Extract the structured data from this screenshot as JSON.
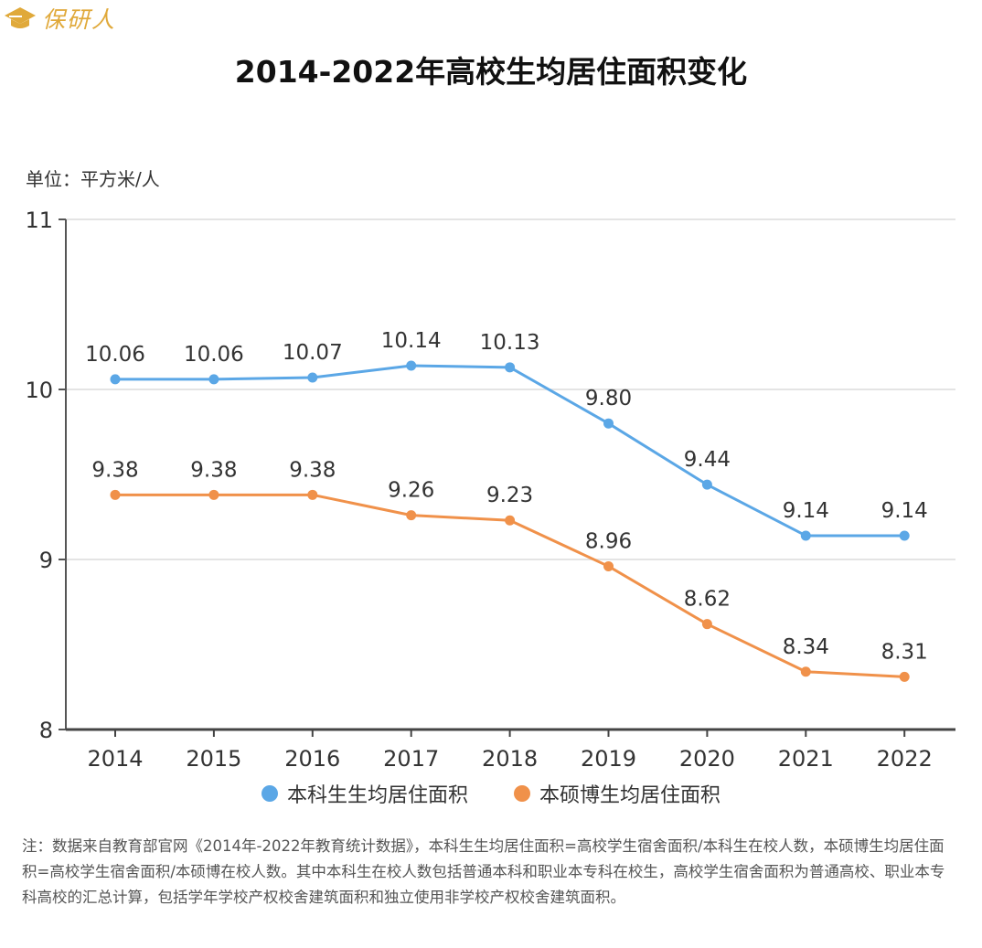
{
  "brand": {
    "name": "保研人",
    "color": "#e0a93a"
  },
  "title": "2014-2022年高校生均居住面积变化",
  "unit_label": "单位：平方米/人",
  "chart_data": {
    "type": "line",
    "title": "2014-2022年高校生均居住面积变化",
    "xlabel": "",
    "ylabel": "单位：平方米/人",
    "categories": [
      "2014",
      "2015",
      "2016",
      "2017",
      "2018",
      "2019",
      "2020",
      "2021",
      "2022"
    ],
    "ylim": [
      8,
      11
    ],
    "yticks": [
      8,
      9,
      10,
      11
    ],
    "ytick_labels": [
      "8",
      "9",
      "10",
      "11"
    ],
    "grid": true,
    "legend_position": "bottom",
    "series": [
      {
        "name": "本科生生均居住面积",
        "color": "#5ba7e6",
        "values": [
          10.06,
          10.06,
          10.07,
          10.14,
          10.13,
          9.8,
          9.44,
          9.14,
          9.14
        ],
        "labels": [
          "10.06",
          "10.06",
          "10.07",
          "10.14",
          "10.13",
          "9.80",
          "9.44",
          "9.14",
          "9.14"
        ]
      },
      {
        "name": "本硕博生均居住面积",
        "color": "#f0914a",
        "values": [
          9.38,
          9.38,
          9.38,
          9.26,
          9.23,
          8.96,
          8.62,
          8.34,
          8.31
        ],
        "labels": [
          "9.38",
          "9.38",
          "9.38",
          "9.26",
          "9.23",
          "8.96",
          "8.62",
          "8.34",
          "8.31"
        ]
      }
    ]
  },
  "note": "注：数据来自教育部官网《2014年-2022年教育统计数据》，本科生生均居住面积=高校学生宿舍面积/本科生在校人数，本硕博生均居住面积=高校学生宿舍面积/本硕博在校人数。其中本科生在校人数包括普通本科和职业本专科在校生，高校学生宿舍面积为普通高校、职业本专科高校的汇总计算，包括学年学校产权校舍建筑面积和独立使用非学校产权校舍建筑面积。"
}
